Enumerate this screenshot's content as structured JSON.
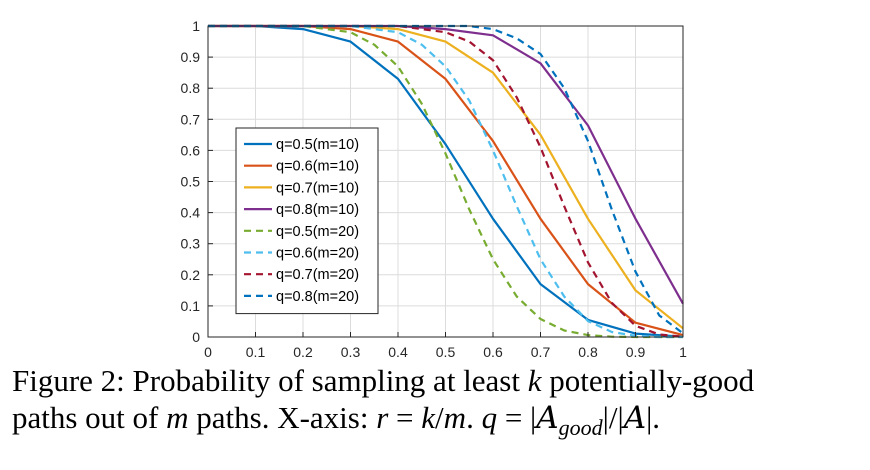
{
  "chart_data": {
    "type": "line",
    "xlim": [
      0,
      1
    ],
    "ylim": [
      0,
      1
    ],
    "grid": true,
    "legend_placement": "center-left",
    "x_ticks": [
      "0",
      "0.1",
      "0.2",
      "0.3",
      "0.4",
      "0.5",
      "0.6",
      "0.7",
      "0.8",
      "0.9",
      "1"
    ],
    "y_ticks": [
      "0",
      "0.1",
      "0.2",
      "0.3",
      "0.4",
      "0.5",
      "0.6",
      "0.7",
      "0.8",
      "0.9",
      "1"
    ],
    "series": [
      {
        "name": "q=0.5(m=10)",
        "color": "#0072BD",
        "dash": "solid",
        "x": [
          0,
          0.1,
          0.2,
          0.3,
          0.4,
          0.5,
          0.6,
          0.7,
          0.8,
          0.9,
          1.0
        ],
        "y": [
          1,
          1,
          0.99,
          0.95,
          0.83,
          0.62,
          0.38,
          0.17,
          0.055,
          0.011,
          0.001
        ]
      },
      {
        "name": "q=0.6(m=10)",
        "color": "#D95319",
        "dash": "solid",
        "x": [
          0,
          0.1,
          0.2,
          0.3,
          0.4,
          0.5,
          0.6,
          0.7,
          0.8,
          0.9,
          1.0
        ],
        "y": [
          1,
          1,
          1,
          0.99,
          0.95,
          0.83,
          0.63,
          0.38,
          0.17,
          0.046,
          0.006
        ]
      },
      {
        "name": "q=0.7(m=10)",
        "color": "#EDB120",
        "dash": "solid",
        "x": [
          0,
          0.1,
          0.2,
          0.3,
          0.4,
          0.5,
          0.6,
          0.7,
          0.8,
          0.9,
          1.0
        ],
        "y": [
          1,
          1,
          1,
          1,
          0.99,
          0.95,
          0.85,
          0.65,
          0.38,
          0.15,
          0.028
        ]
      },
      {
        "name": "q=0.8(m=10)",
        "color": "#7E2F8E",
        "dash": "solid",
        "x": [
          0,
          0.1,
          0.2,
          0.3,
          0.4,
          0.5,
          0.6,
          0.7,
          0.8,
          0.9,
          1.0
        ],
        "y": [
          1,
          1,
          1,
          1,
          1,
          0.99,
          0.97,
          0.88,
          0.68,
          0.38,
          0.107
        ]
      },
      {
        "name": "q=0.5(m=20)",
        "color": "#77AC30",
        "dash": "dashed",
        "x": [
          0,
          0.05,
          0.1,
          0.15,
          0.2,
          0.25,
          0.3,
          0.35,
          0.4,
          0.45,
          0.5,
          0.55,
          0.6,
          0.65,
          0.7,
          0.75,
          0.8,
          0.85,
          0.9,
          0.95,
          1.0
        ],
        "y": [
          1,
          1,
          1,
          1,
          1,
          0.99,
          0.98,
          0.94,
          0.87,
          0.75,
          0.59,
          0.41,
          0.25,
          0.13,
          0.058,
          0.021,
          0.006,
          0.001,
          0,
          0,
          0
        ]
      },
      {
        "name": "q=0.6(m=20)",
        "color": "#4DBEEE",
        "dash": "dashed",
        "x": [
          0,
          0.05,
          0.1,
          0.15,
          0.2,
          0.25,
          0.3,
          0.35,
          0.4,
          0.45,
          0.5,
          0.55,
          0.6,
          0.65,
          0.7,
          0.75,
          0.8,
          0.85,
          0.9,
          0.95,
          1.0
        ],
        "y": [
          1,
          1,
          1,
          1,
          1,
          1,
          1,
          0.99,
          0.98,
          0.94,
          0.87,
          0.76,
          0.6,
          0.42,
          0.25,
          0.13,
          0.051,
          0.016,
          0.004,
          0,
          0
        ]
      },
      {
        "name": "q=0.7(m=20)",
        "color": "#A2142F",
        "dash": "dashed",
        "x": [
          0,
          0.05,
          0.1,
          0.15,
          0.2,
          0.25,
          0.3,
          0.35,
          0.4,
          0.45,
          0.5,
          0.55,
          0.6,
          0.65,
          0.7,
          0.75,
          0.8,
          0.85,
          0.9,
          0.95,
          1.0
        ],
        "y": [
          1,
          1,
          1,
          1,
          1,
          1,
          1,
          1,
          1,
          0.99,
          0.98,
          0.95,
          0.89,
          0.77,
          0.61,
          0.42,
          0.24,
          0.11,
          0.036,
          0.008,
          0.001
        ]
      },
      {
        "name": "q=0.8(m=20)",
        "color": "#0072BD",
        "dash": "dashed",
        "x": [
          0,
          0.05,
          0.1,
          0.15,
          0.2,
          0.25,
          0.3,
          0.35,
          0.4,
          0.45,
          0.5,
          0.55,
          0.6,
          0.65,
          0.7,
          0.75,
          0.8,
          0.85,
          0.9,
          0.95,
          1.0
        ],
        "y": [
          1,
          1,
          1,
          1,
          1,
          1,
          1,
          1,
          1,
          1,
          1,
          1,
          0.99,
          0.96,
          0.91,
          0.8,
          0.63,
          0.41,
          0.21,
          0.069,
          0.012
        ]
      }
    ]
  },
  "caption": {
    "line1_a": "Figure 2: Probability of sampling at least ",
    "k": "k",
    "line1_b": " potentially-good",
    "line2_a": "paths out of ",
    "m": "m",
    "line2_b": " paths. X-axis: ",
    "r_eq": "r",
    "eq1": " = ",
    "k2": "k",
    "slash": "/",
    "m2": "m",
    "dot": ". ",
    "q": "q",
    "eq2": " = |",
    "A1": "A",
    "good": "good",
    "mid": "|/|",
    "A2": "A",
    "end": "|."
  }
}
